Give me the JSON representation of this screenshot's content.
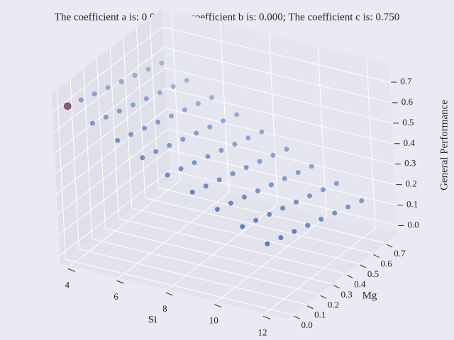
{
  "chart_data": {
    "type": "scatter3d",
    "title": "The coefficient a is: 0.000; The coefficient b is: 0.000; The coefficient c is: 0.750",
    "xlabel": "Si",
    "ylabel": "Mg",
    "zlabel": "General Performance",
    "xlim": [
      3.6,
      12.9
    ],
    "ylim": [
      -0.04,
      0.79
    ],
    "zlim": [
      -0.04,
      0.79
    ],
    "xticks": [
      4,
      6,
      8,
      10,
      12
    ],
    "yticks": [
      {
        "value": 0,
        "label": "0.0"
      },
      0.1,
      0.2,
      0.3,
      0.4,
      0.5,
      0.6,
      0.7
    ],
    "zticks": [
      {
        "value": 0,
        "label": "0.0"
      },
      0.1,
      0.2,
      0.3,
      0.4,
      0.5,
      0.6,
      0.7
    ],
    "grid": true,
    "series": [
      {
        "color": "#4c72b0",
        "x": [
          4,
          4,
          4,
          4,
          4,
          4,
          4,
          4,
          5,
          5,
          5,
          5,
          5,
          5,
          5,
          5,
          6,
          6,
          6,
          6,
          6,
          6,
          6,
          6,
          7,
          7,
          7,
          7,
          7,
          7,
          7,
          7,
          8,
          8,
          8,
          8,
          8,
          8,
          8,
          8,
          9,
          9,
          9,
          9,
          9,
          9,
          9,
          9,
          10,
          10,
          10,
          10,
          10,
          10,
          10,
          10,
          11,
          11,
          11,
          11,
          11,
          11,
          11,
          11,
          12,
          12,
          12,
          12,
          12,
          12,
          12,
          12
        ],
        "y": [
          0,
          0.1,
          0.2,
          0.3,
          0.4,
          0.5,
          0.6,
          0.7,
          0,
          0.1,
          0.2,
          0.3,
          0.4,
          0.5,
          0.6,
          0.7,
          0,
          0.1,
          0.2,
          0.3,
          0.4,
          0.5,
          0.6,
          0.7,
          0,
          0.1,
          0.2,
          0.3,
          0.4,
          0.5,
          0.6,
          0.7,
          0,
          0.1,
          0.2,
          0.3,
          0.4,
          0.5,
          0.6,
          0.7,
          0,
          0.1,
          0.2,
          0.3,
          0.4,
          0.5,
          0.6,
          0.7,
          0,
          0.1,
          0.2,
          0.3,
          0.4,
          0.5,
          0.6,
          0.7,
          0,
          0.1,
          0.2,
          0.3,
          0.4,
          0.5,
          0.6,
          0.7,
          0,
          0.1,
          0.2,
          0.3,
          0.4,
          0.5,
          0.6,
          0.7
        ],
        "z": [
          0.72,
          0.7,
          0.68,
          0.66,
          0.64,
          0.62,
          0.6,
          0.58,
          0.665,
          0.645,
          0.625,
          0.605,
          0.585,
          0.565,
          0.545,
          0.525,
          0.61,
          0.59,
          0.57,
          0.55,
          0.53,
          0.51,
          0.49,
          0.47,
          0.555,
          0.535,
          0.515,
          0.495,
          0.475,
          0.455,
          0.435,
          0.415,
          0.5,
          0.48,
          0.46,
          0.44,
          0.42,
          0.4,
          0.38,
          0.36,
          0.445,
          0.425,
          0.405,
          0.385,
          0.365,
          0.345,
          0.325,
          0.305,
          0.39,
          0.37,
          0.35,
          0.33,
          0.31,
          0.29,
          0.27,
          0.25,
          0.335,
          0.315,
          0.295,
          0.275,
          0.255,
          0.235,
          0.215,
          0.195,
          0.28,
          0.26,
          0.24,
          0.22,
          0.2,
          0.18,
          0.16,
          0.14
        ]
      },
      {
        "color": "#4c72b0",
        "edgecolor": "#d62728",
        "x": [
          4
        ],
        "y": [
          0
        ],
        "z": [
          0.72
        ]
      }
    ]
  }
}
